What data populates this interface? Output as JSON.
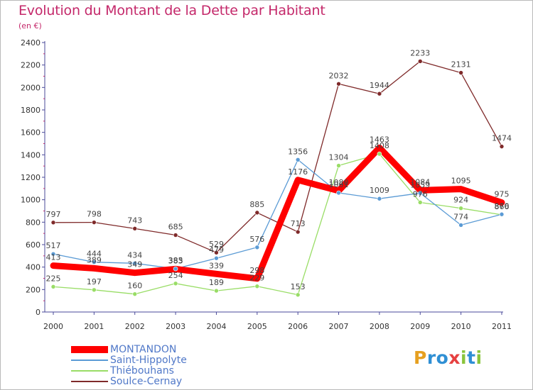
{
  "header": {
    "title": "Evolution du Montant de la Dette par Habitant",
    "subtitle": "(en €)"
  },
  "logo": {
    "letters": [
      "P",
      "r",
      "o",
      "x",
      "i",
      "t",
      "i"
    ],
    "colors": [
      "#e6a020",
      "#2f8fd4",
      "#2f8fd4",
      "#e64040",
      "#8ac43c",
      "#2f8fd4",
      "#8ac43c"
    ]
  },
  "chart_data": {
    "type": "line",
    "x": [
      "2000",
      "2001",
      "2002",
      "2003",
      "2004",
      "2005",
      "2006",
      "2007",
      "2008",
      "2009",
      "2010",
      "2011"
    ],
    "ylim": [
      0,
      2400
    ],
    "yticks": [
      0,
      200,
      400,
      600,
      800,
      1000,
      1200,
      1400,
      1600,
      1800,
      2000,
      2200,
      2400
    ],
    "grid": false,
    "legend_position": "bottom-left",
    "series": [
      {
        "name": "MONTANDON",
        "color": "#ff0000",
        "values": [
          413,
          389,
          349,
          383,
          339,
          298,
          1176,
          1080,
          1463,
          1084,
          1095,
          975
        ],
        "labels": [
          "413",
          "389",
          "349",
          "383",
          "339",
          "298",
          "1176",
          "1080",
          "1463",
          "1084",
          "1095",
          "975"
        ]
      },
      {
        "name": "Saint-Hippolyte",
        "color": "#5b9bd5",
        "values": [
          517,
          444,
          434,
          385,
          479,
          576,
          1356,
          1061,
          1009,
          1059,
          774,
          870
        ],
        "labels": [
          "517",
          "444",
          "434",
          "385",
          "479",
          "576",
          "1356",
          "1061",
          "1009",
          "1059",
          "774",
          "870"
        ]
      },
      {
        "name": "Thiébouhans",
        "color": "#99dd66",
        "values": [
          225,
          197,
          160,
          254,
          189,
          229,
          153,
          1304,
          1408,
          976,
          924,
          866
        ],
        "labels": [
          "225",
          "197",
          "160",
          "254",
          "189",
          "229",
          "153",
          "1304",
          "1408",
          "976",
          "924",
          "866"
        ]
      },
      {
        "name": "Soulce-Cernay",
        "color": "#7f2a2a",
        "values": [
          797,
          798,
          743,
          685,
          529,
          885,
          713,
          2032,
          1944,
          2233,
          2131,
          1474
        ],
        "labels": [
          "797",
          "798",
          "743",
          "685",
          "529",
          "885",
          "713",
          "2032",
          "1944",
          "2233",
          "2131",
          "1474"
        ]
      }
    ]
  }
}
